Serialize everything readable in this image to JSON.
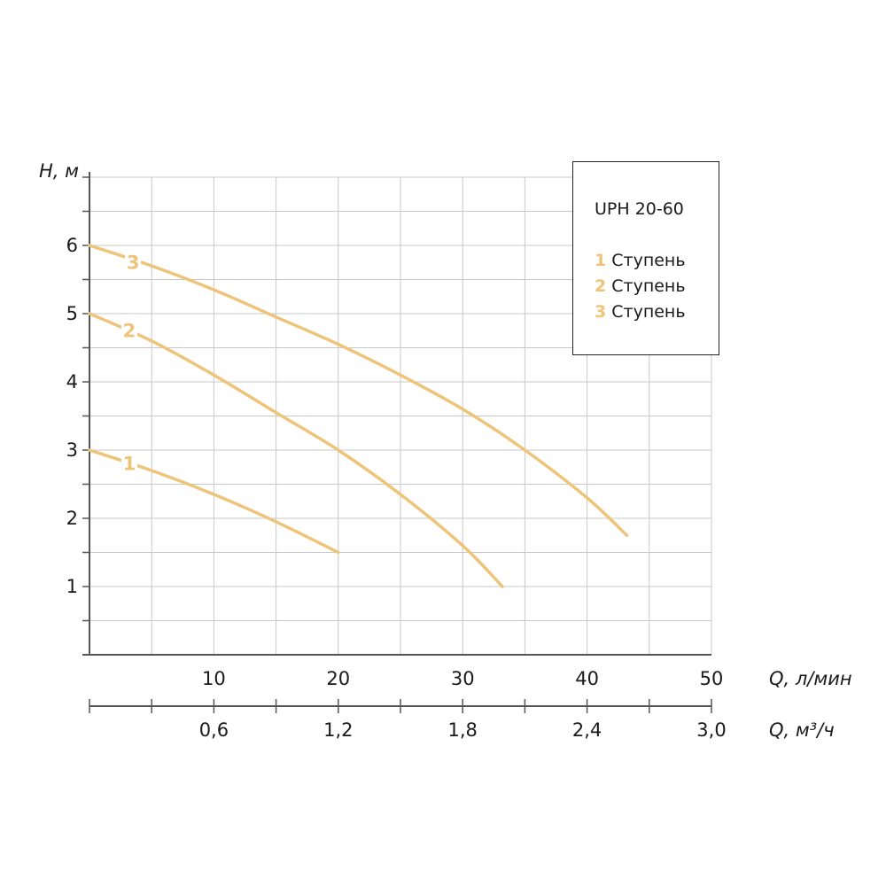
{
  "chart_data": {
    "type": "line",
    "title": "",
    "ylabel": "H, м",
    "xlabel": "Q, л/мин",
    "x2label": "Q, м³/ч",
    "xlim": [
      0,
      50
    ],
    "ylim": [
      0,
      7
    ],
    "x_ticks": [
      "10",
      "20",
      "30",
      "40",
      "50"
    ],
    "x2_ticks": [
      "0,6",
      "1,2",
      "1,8",
      "2,4",
      "3,0"
    ],
    "y_ticks": [
      "1",
      "2",
      "3",
      "4",
      "5",
      "6"
    ],
    "grid": true,
    "color": "#eec47a",
    "series": [
      {
        "name": "1",
        "label_at": [
          3.2,
          2.8
        ],
        "x": [
          0,
          5,
          10,
          15,
          20
        ],
        "y": [
          3.0,
          2.7,
          2.35,
          1.95,
          1.5
        ]
      },
      {
        "name": "2",
        "label_at": [
          3.2,
          4.75
        ],
        "x": [
          0,
          5,
          10,
          15,
          20,
          25,
          30,
          33.2
        ],
        "y": [
          5.0,
          4.6,
          4.1,
          3.55,
          3.0,
          2.35,
          1.6,
          1.0
        ]
      },
      {
        "name": "3",
        "label_at": [
          3.5,
          5.75
        ],
        "x": [
          0,
          5,
          10,
          15,
          20,
          25,
          30,
          35,
          40,
          43.2
        ],
        "y": [
          6.0,
          5.7,
          5.35,
          4.95,
          4.55,
          4.1,
          3.6,
          3.0,
          2.3,
          1.75
        ]
      }
    ]
  },
  "legend": {
    "title": "UPH 20-60",
    "items": [
      {
        "num": "1",
        "label": "Ступень"
      },
      {
        "num": "2",
        "label": "Ступень"
      },
      {
        "num": "3",
        "label": "Ступень"
      }
    ]
  }
}
